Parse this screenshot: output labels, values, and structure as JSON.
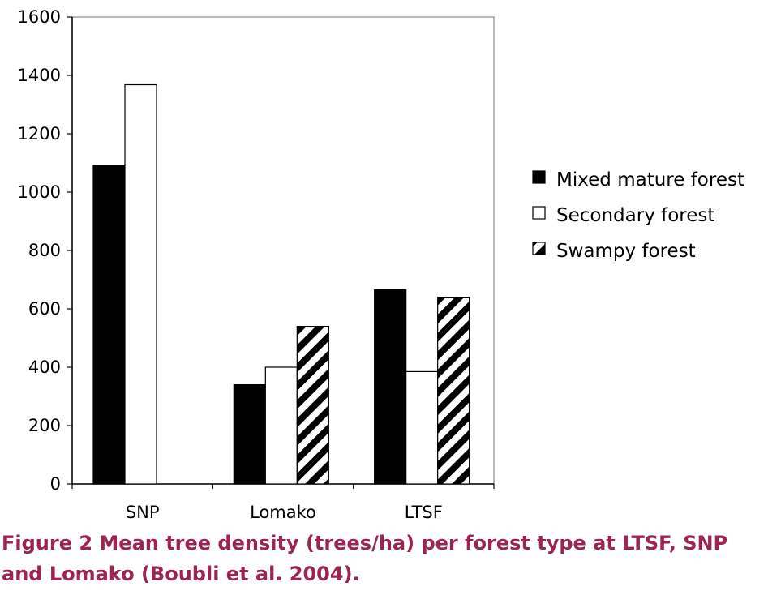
{
  "chart_data": {
    "type": "bar",
    "categories": [
      "SNP",
      "Lomako",
      "LTSF"
    ],
    "series": [
      {
        "name": "Mixed mature forest",
        "values": [
          1090,
          340,
          665
        ],
        "fill": "solid-black"
      },
      {
        "name": "Secondary forest",
        "values": [
          1368,
          400,
          385
        ],
        "fill": "white"
      },
      {
        "name": "Swampy forest",
        "values": [
          null,
          540,
          640
        ],
        "fill": "diagonal-stripes"
      }
    ],
    "yticks": [
      0,
      200,
      400,
      600,
      800,
      1000,
      1200,
      1400,
      1600
    ],
    "ylim": [
      0,
      1600
    ],
    "legend_position": "right",
    "grid": false
  },
  "caption": {
    "line1": "Figure 2 Mean tree density (trees/ha) per forest type at LTSF, SNP",
    "line2": "and Lomako (Boubli et al. 2004)."
  },
  "colors": {
    "caption": "#9b2453",
    "bar_dark": "#000000",
    "bar_light": "#ffffff"
  }
}
